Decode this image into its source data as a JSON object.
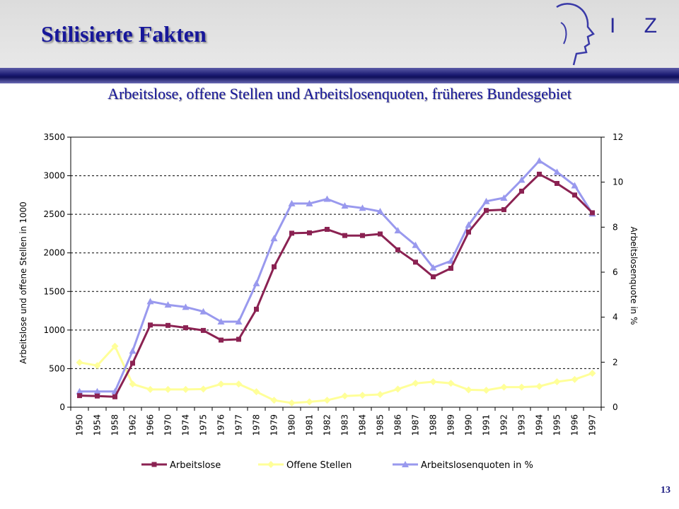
{
  "header": {
    "title": "Stilisierte Fakten",
    "logo_text": "I Z A",
    "logo_icon": "head-profile-icon"
  },
  "subtitle": "Arbeitslose, offene Stellen und Arbeitslosenquoten, früheres Bundesgebiet",
  "page_number": "13",
  "colors": {
    "title": "#17179a",
    "band": "#1a1a72",
    "arbeitslose": "#8b2252",
    "offene_stellen": "#ffff99",
    "quoten": "#9999ee"
  },
  "chart_data": {
    "type": "line",
    "categories": [
      "1950",
      "1954",
      "1958",
      "1962",
      "1966",
      "1970",
      "1974",
      "1975",
      "1976",
      "1977",
      "1978",
      "1979",
      "1980",
      "1981",
      "1982",
      "1983",
      "1984",
      "1985",
      "1986",
      "1987",
      "1988",
      "1989",
      "1990",
      "1991",
      "1992",
      "1993",
      "1994",
      "1995",
      "1996",
      "1997"
    ],
    "ylabel": "Arbeitslose und offene Stellen in 1000",
    "y2label": "Arbeitslosenquote in %",
    "ylim": [
      0,
      3500
    ],
    "y2lim": [
      0,
      12
    ],
    "yticks": [
      0,
      500,
      1000,
      1500,
      2000,
      2500,
      3000,
      3500
    ],
    "y2ticks": [
      0,
      2,
      4,
      6,
      8,
      10,
      12
    ],
    "grid": "horizontal dashed",
    "legend_position": "bottom",
    "series": [
      {
        "name": "Arbeitslose",
        "axis": "left",
        "color": "#8b2252",
        "marker": "square",
        "values": [
          150,
          145,
          135,
          570,
          1065,
          1060,
          1030,
          995,
          870,
          880,
          1270,
          1820,
          2255,
          2260,
          2305,
          2225,
          2225,
          2245,
          2040,
          1880,
          1690,
          1800,
          2270,
          2550,
          2560,
          2800,
          3020,
          2900,
          2750,
          2520
        ]
      },
      {
        "name": "Offene Stellen",
        "axis": "left",
        "color": "#ffff99",
        "marker": "diamond",
        "values": [
          580,
          540,
          790,
          300,
          230,
          230,
          230,
          235,
          300,
          300,
          200,
          90,
          55,
          70,
          90,
          145,
          155,
          165,
          235,
          310,
          330,
          310,
          225,
          220,
          260,
          260,
          270,
          330,
          360,
          440
        ]
      },
      {
        "name": "Arbeitslosenquoten in %",
        "axis": "right",
        "color": "#9999ee",
        "marker": "triangle",
        "values": [
          0.7,
          0.7,
          0.7,
          2.5,
          4.7,
          4.55,
          4.45,
          4.25,
          3.8,
          3.8,
          5.5,
          7.5,
          9.05,
          9.05,
          9.25,
          8.95,
          8.85,
          8.7,
          7.85,
          7.2,
          6.2,
          6.5,
          8.1,
          9.15,
          9.3,
          10.1,
          10.95,
          10.45,
          9.85,
          8.6
        ]
      }
    ]
  }
}
